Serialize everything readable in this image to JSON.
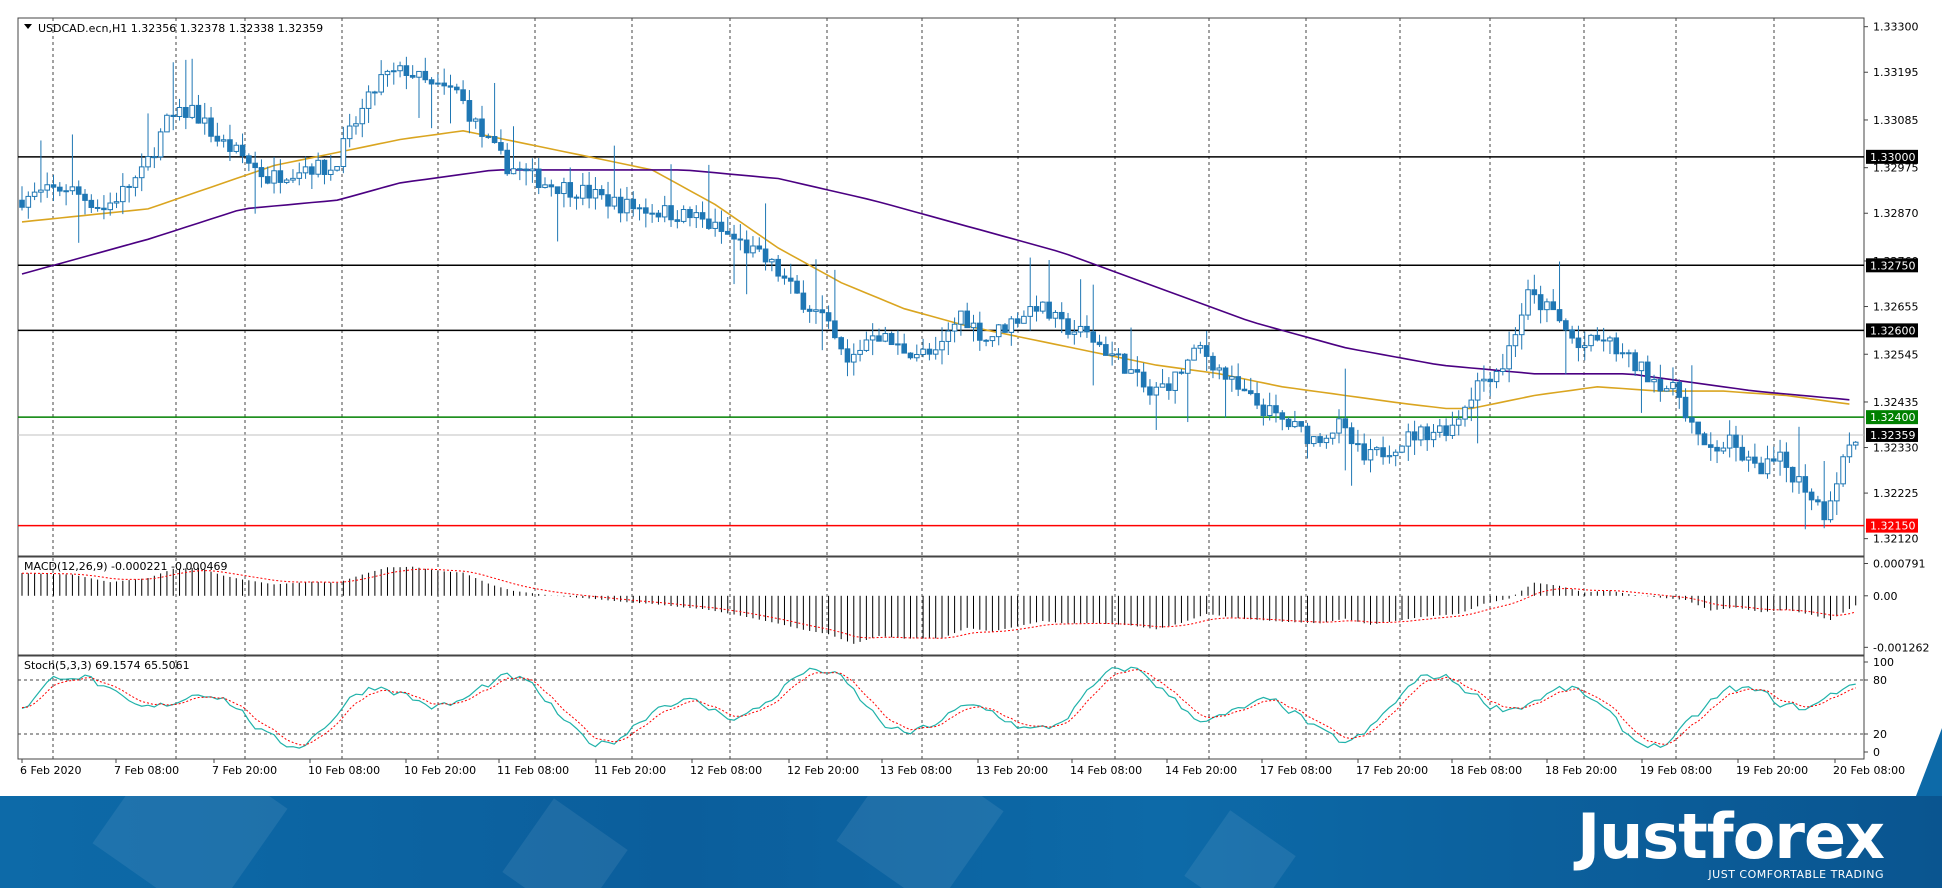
{
  "symbol_header": "USDCAD.ecn,H1  1.32356 1.32378 1.32338 1.32359",
  "macd_header": "MACD(12,26,9) -0.000221 -0.000469",
  "stoch_header": "Stoch(5,3,3) 69.1574 65.5061",
  "price_axis": {
    "ticks": [
      "1.33300",
      "1.33195",
      "1.33085",
      "1.32975",
      "1.32870",
      "1.32760",
      "1.32655",
      "1.32545",
      "1.32435",
      "1.32330",
      "1.32225",
      "1.32120"
    ],
    "ylim": [
      1.3208,
      1.3332
    ]
  },
  "levels": [
    {
      "value": 1.33,
      "label": "1.33000",
      "color": "#000000"
    },
    {
      "value": 1.3275,
      "label": "1.32750",
      "color": "#000000"
    },
    {
      "value": 1.326,
      "label": "1.32600",
      "color": "#000000"
    },
    {
      "value": 1.324,
      "label": "1.32400",
      "color": "#008000"
    },
    {
      "value": 1.3215,
      "label": "1.32150",
      "color": "#ff0000"
    }
  ],
  "current_price": {
    "value": 1.32359,
    "label": "1.32359"
  },
  "macd_axis": {
    "ticks": [
      "0.000791",
      "0.00",
      "-0.001262"
    ],
    "ylim": [
      -0.00145,
      0.00095
    ]
  },
  "stoch_axis": {
    "ticks": [
      "100",
      "80",
      "20",
      "0"
    ],
    "levels": [
      80,
      20
    ]
  },
  "time_labels": [
    "6 Feb 2020",
    "7 Feb 08:00",
    "7 Feb 20:00",
    "10 Feb 08:00",
    "10 Feb 20:00",
    "11 Feb 08:00",
    "11 Feb 20:00",
    "12 Feb 08:00",
    "12 Feb 20:00",
    "13 Feb 08:00",
    "13 Feb 20:00",
    "14 Feb 08:00",
    "14 Feb 20:00",
    "17 Feb 08:00",
    "17 Feb 20:00",
    "18 Feb 08:00",
    "18 Feb 20:00",
    "19 Feb 08:00",
    "19 Feb 20:00",
    "20 Feb 08:00"
  ],
  "colors": {
    "candle": "#1f77b4",
    "ma_fast": "#daa520",
    "ma_slow": "#4b0082",
    "macd_signal": "#ff0000",
    "stoch_main": "#20b2aa",
    "stoch_signal": "#ff0000",
    "banner": "#0d6aa8"
  },
  "brand": {
    "name": "Justforex",
    "tagline": "JUST COMFORTABLE TRADING"
  },
  "chart_data": {
    "type": "candlestick",
    "timeframe": "H1",
    "symbol": "USDCAD.ecn",
    "price_anchors": [
      [
        0,
        1.329
      ],
      [
        8,
        1.3293
      ],
      [
        14,
        1.3288
      ],
      [
        20,
        1.3296
      ],
      [
        24,
        1.3308
      ],
      [
        28,
        1.3311
      ],
      [
        32,
        1.3304
      ],
      [
        36,
        1.33
      ],
      [
        40,
        1.3295
      ],
      [
        46,
        1.3298
      ],
      [
        50,
        1.3297
      ],
      [
        54,
        1.3308
      ],
      [
        58,
        1.3318
      ],
      [
        62,
        1.332
      ],
      [
        66,
        1.3316
      ],
      [
        70,
        1.3315
      ],
      [
        74,
        1.3305
      ],
      [
        78,
        1.3298
      ],
      [
        84,
        1.3294
      ],
      [
        90,
        1.3292
      ],
      [
        96,
        1.3289
      ],
      [
        100,
        1.3288
      ],
      [
        104,
        1.3287
      ],
      [
        108,
        1.3286
      ],
      [
        114,
        1.3281
      ],
      [
        120,
        1.3275
      ],
      [
        124,
        1.3268
      ],
      [
        128,
        1.3263
      ],
      [
        132,
        1.3252
      ],
      [
        136,
        1.326
      ],
      [
        140,
        1.3256
      ],
      [
        146,
        1.3254
      ],
      [
        150,
        1.3264
      ],
      [
        154,
        1.3258
      ],
      [
        158,
        1.3262
      ],
      [
        162,
        1.3266
      ],
      [
        166,
        1.3261
      ],
      [
        170,
        1.3259
      ],
      [
        176,
        1.3252
      ],
      [
        180,
        1.3245
      ],
      [
        184,
        1.3249
      ],
      [
        188,
        1.3256
      ],
      [
        194,
        1.3246
      ],
      [
        200,
        1.324
      ],
      [
        206,
        1.3235
      ],
      [
        210,
        1.3238
      ],
      [
        214,
        1.323
      ],
      [
        218,
        1.3233
      ],
      [
        222,
        1.3236
      ],
      [
        228,
        1.3238
      ],
      [
        232,
        1.3248
      ],
      [
        236,
        1.3252
      ],
      [
        240,
        1.3268
      ],
      [
        244,
        1.3264
      ],
      [
        248,
        1.3256
      ],
      [
        252,
        1.3258
      ],
      [
        256,
        1.3253
      ],
      [
        260,
        1.3249
      ],
      [
        264,
        1.3245
      ],
      [
        268,
        1.3232
      ],
      [
        272,
        1.3234
      ],
      [
        276,
        1.3228
      ],
      [
        280,
        1.323
      ],
      [
        284,
        1.3224
      ],
      [
        287,
        1.3218
      ],
      [
        291,
        1.3234
      ]
    ],
    "ma_fast": [
      [
        0,
        1.3285
      ],
      [
        20,
        1.3288
      ],
      [
        40,
        1.3298
      ],
      [
        60,
        1.3304
      ],
      [
        70,
        1.3306
      ],
      [
        80,
        1.3303
      ],
      [
        90,
        1.33
      ],
      [
        100,
        1.3297
      ],
      [
        110,
        1.3289
      ],
      [
        120,
        1.3279
      ],
      [
        130,
        1.3271
      ],
      [
        140,
        1.3265
      ],
      [
        150,
        1.3261
      ],
      [
        160,
        1.3258
      ],
      [
        170,
        1.3255
      ],
      [
        180,
        1.3252
      ],
      [
        190,
        1.325
      ],
      [
        200,
        1.3247
      ],
      [
        210,
        1.3245
      ],
      [
        220,
        1.3243
      ],
      [
        226,
        1.3242
      ],
      [
        230,
        1.3242
      ],
      [
        240,
        1.3245
      ],
      [
        250,
        1.3247
      ],
      [
        260,
        1.3246
      ],
      [
        270,
        1.3246
      ],
      [
        280,
        1.3245
      ],
      [
        290,
        1.3243
      ]
    ],
    "ma_slow": [
      [
        0,
        1.3273
      ],
      [
        20,
        1.3281
      ],
      [
        35,
        1.3288
      ],
      [
        50,
        1.329
      ],
      [
        60,
        1.3294
      ],
      [
        75,
        1.3297
      ],
      [
        90,
        1.3297
      ],
      [
        105,
        1.3297
      ],
      [
        120,
        1.3295
      ],
      [
        135,
        1.329
      ],
      [
        150,
        1.3284
      ],
      [
        165,
        1.3278
      ],
      [
        180,
        1.327
      ],
      [
        195,
        1.3262
      ],
      [
        210,
        1.3256
      ],
      [
        225,
        1.3252
      ],
      [
        240,
        1.325
      ],
      [
        255,
        1.325
      ],
      [
        265,
        1.3248
      ],
      [
        275,
        1.3246
      ],
      [
        290,
        1.3244
      ]
    ]
  }
}
